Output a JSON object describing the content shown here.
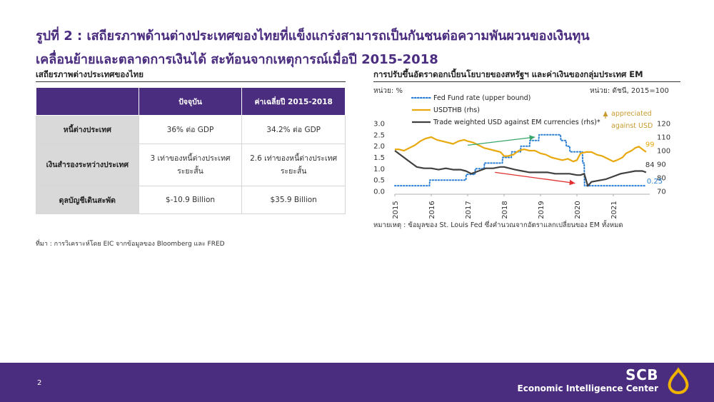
{
  "title": {
    "line1": "รูปที่ 2 : เสถียรภาพด้านต่างประเทศของไทยที่แข็งแกร่งสามารถเป็นกันชนต่อความพันผวนของเงินทุน",
    "line2": "เคลื่อนย้ายและตลาดการเงินได้ สะท้อนจากเหตุการณ์เมื่อปี 2015-2018"
  },
  "left_panel": {
    "subtitle": "เสถียรภาพต่างประเทศของไทย",
    "table": {
      "headers": [
        "",
        "ปัจจุบัน",
        "ค่าเฉลี่ยปี 2015-2018"
      ],
      "rows": [
        {
          "label": "หนี้ต่างประเทศ",
          "current": "36% ต่อ GDP",
          "avg": "34.2% ต่อ GDP"
        },
        {
          "label": "เงินสำรองระหว่างประเทศ",
          "current_l1": "3 เท่าของหนี้ต่างประเทศ",
          "current_l2": "ระยะสั้น",
          "avg_l1": "2.6 เท่าของหนี้ต่างประเทศ",
          "avg_l2": "ระยะสั้น"
        },
        {
          "label": "ดุลบัญชีเดินสะพัด",
          "current": "$-10.9 Billion",
          "avg": "$35.9 Billion"
        }
      ]
    },
    "source": "ที่มา : การวิเคราะห์โดย EIC จากข้อมูลของ Bloomberg และ FRED"
  },
  "right_panel": {
    "subtitle": "การปรับขึ้นอัตราดอกเบี้ยนโยบายของสหรัฐฯ และค่าเงินของกลุ่มประเทศ EM",
    "unit_left": "หน่วย: %",
    "unit_right": "หน่วย: ดัชนี, 2015=100",
    "note": "หมายเหตุ : ข้อมูลของ St. Louis Fed ซึ่งคำนวณจากอัตราแลกเปลี่ยนของ EM ทั้งหมด",
    "annotation_line1": "appreciated",
    "annotation_line2": "against USD"
  },
  "chart_data": {
    "type": "line",
    "xlabel": "",
    "ylabel": "",
    "x_ticks": [
      "2015",
      "2016",
      "2017",
      "2018",
      "2019",
      "2020",
      "2021"
    ],
    "x_range": [
      2015.0,
      2022.0
    ],
    "ylim_left": [
      0.0,
      3.0
    ],
    "yticks_left": [
      "0.0",
      "0.5",
      "1.0",
      "1.5",
      "2.0",
      "2.5",
      "3.0"
    ],
    "ylim_right": [
      70,
      120
    ],
    "yticks_right": [
      "70",
      "80",
      "90",
      "100",
      "110",
      "120"
    ],
    "grid": false,
    "legend_position": "top-left",
    "end_labels": {
      "fed": "0.25",
      "usdthb": "99",
      "em": "84"
    },
    "colors": {
      "fed": "#2a7fd4",
      "usdthb": "#e8a90f",
      "em": "#404040",
      "green_arrow": "#3aa66b",
      "red_arrow": "#e03030",
      "annotation": "#c99a2e"
    },
    "series": [
      {
        "name": "Fed Fund rate (upper bound)",
        "axis": "left",
        "style": "dotted",
        "x": [
          2015.0,
          2015.95,
          2015.96,
          2016.95,
          2016.96,
          2017.2,
          2017.21,
          2017.45,
          2017.46,
          2017.95,
          2017.96,
          2018.2,
          2018.21,
          2018.45,
          2018.46,
          2018.7,
          2018.71,
          2018.95,
          2018.96,
          2019.55,
          2019.56,
          2019.7,
          2019.71,
          2019.8,
          2019.81,
          2020.15,
          2020.16,
          2020.2,
          2020.21,
          2021.9
        ],
        "y": [
          0.25,
          0.25,
          0.5,
          0.5,
          0.75,
          0.75,
          1.0,
          1.0,
          1.25,
          1.25,
          1.5,
          1.5,
          1.75,
          1.75,
          2.0,
          2.0,
          2.25,
          2.25,
          2.5,
          2.5,
          2.25,
          2.25,
          2.0,
          2.0,
          1.75,
          1.75,
          1.25,
          1.25,
          0.25,
          0.25
        ]
      },
      {
        "name": "USDTHB (rhs)",
        "axis": "right",
        "style": "solid",
        "x": [
          2015.0,
          2015.1,
          2015.25,
          2015.4,
          2015.55,
          2015.7,
          2015.85,
          2016.0,
          2016.15,
          2016.3,
          2016.45,
          2016.6,
          2016.75,
          2016.9,
          2017.0,
          2017.15,
          2017.3,
          2017.45,
          2017.6,
          2017.75,
          2017.9,
          2018.0,
          2018.1,
          2018.25,
          2018.4,
          2018.55,
          2018.7,
          2018.85,
          2019.0,
          2019.15,
          2019.3,
          2019.45,
          2019.6,
          2019.75,
          2019.9,
          2020.0,
          2020.1,
          2020.25,
          2020.4,
          2020.55,
          2020.7,
          2020.85,
          2021.0,
          2021.1,
          2021.25,
          2021.35,
          2021.5,
          2021.6,
          2021.7,
          2021.85,
          2021.9
        ],
        "y": [
          101,
          101,
          100,
          102,
          104,
          107,
          109,
          110,
          108,
          107,
          106,
          105,
          107,
          108,
          107,
          106,
          104,
          102,
          101,
          100,
          99,
          96,
          96,
          97,
          100,
          101,
          100,
          100,
          98,
          97,
          95,
          94,
          93,
          94,
          92,
          93,
          98,
          99,
          99,
          97,
          96,
          94,
          92,
          93,
          95,
          98,
          100,
          102,
          103,
          100,
          99
        ]
      },
      {
        "name": "Trade weighted USD against EM currencies (rhs)*",
        "axis": "right",
        "style": "solid",
        "x": [
          2015.0,
          2015.2,
          2015.4,
          2015.6,
          2015.8,
          2016.0,
          2016.2,
          2016.4,
          2016.6,
          2016.8,
          2016.95,
          2017.1,
          2017.3,
          2017.5,
          2017.7,
          2017.9,
          2018.0,
          2018.15,
          2018.3,
          2018.5,
          2018.7,
          2018.9,
          2019.0,
          2019.2,
          2019.4,
          2019.6,
          2019.8,
          2020.0,
          2020.1,
          2020.2,
          2020.3,
          2020.4,
          2020.6,
          2020.8,
          2021.0,
          2021.2,
          2021.4,
          2021.6,
          2021.8,
          2021.9
        ],
        "y": [
          100,
          96,
          92,
          88,
          87,
          87,
          86,
          87,
          86,
          86,
          85,
          83,
          85,
          87,
          87,
          88,
          88,
          87,
          86,
          85,
          84,
          84,
          84,
          84,
          83,
          83,
          83,
          82,
          82,
          83,
          74,
          77,
          78,
          79,
          81,
          83,
          84,
          85,
          85,
          84
        ]
      }
    ],
    "annotations": [
      {
        "type": "arrow",
        "color": "green",
        "from": [
          2017.0,
          104
        ],
        "to": [
          2018.85,
          110
        ]
      },
      {
        "type": "arrow",
        "color": "red",
        "from": [
          2017.75,
          84
        ],
        "to": [
          2019.95,
          76
        ]
      }
    ]
  },
  "footer": {
    "page_number": "2",
    "brand": "SCB",
    "center": "Economic Intelligence Center",
    "bg_color": "#4b2d7f",
    "logo_color": "#f0b400"
  }
}
